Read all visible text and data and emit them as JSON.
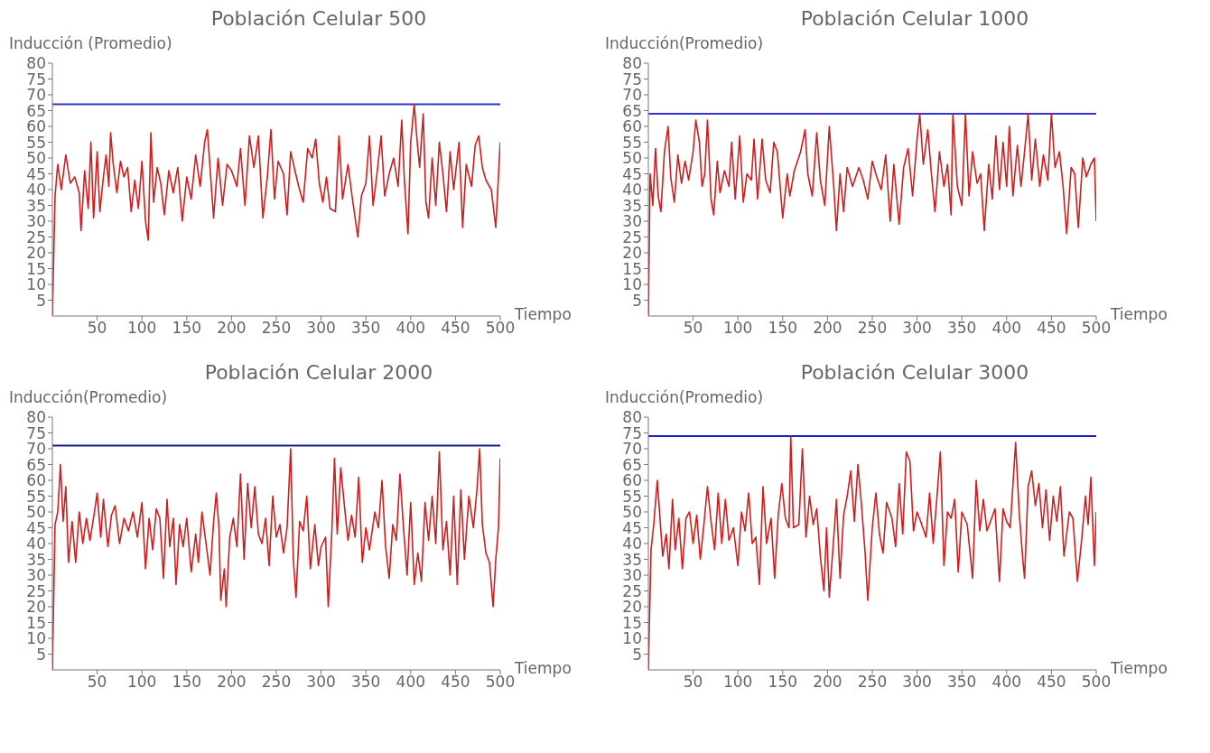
{
  "chart_data": [
    {
      "type": "line",
      "title": "Población Celular 500",
      "ylabel": "Inducción (Promedio)",
      "xlabel": "Tiempo",
      "xlim": [
        0,
        500
      ],
      "ylim": [
        0,
        80
      ],
      "xticks": [
        50,
        100,
        150,
        200,
        250,
        300,
        350,
        400,
        450,
        500
      ],
      "yticks": [
        5,
        10,
        15,
        20,
        25,
        30,
        35,
        40,
        45,
        50,
        55,
        60,
        65,
        70,
        75,
        80
      ],
      "ref_lines": [
        {
          "axis": "y",
          "value": 67,
          "color": "#3434d4"
        }
      ],
      "x": [
        0,
        3,
        6,
        10,
        15,
        20,
        25,
        30,
        32,
        36,
        40,
        43,
        46,
        50,
        53,
        57,
        60,
        63,
        65,
        68,
        72,
        76,
        80,
        84,
        88,
        92,
        96,
        100,
        104,
        107,
        110,
        113,
        117,
        121,
        125,
        130,
        135,
        140,
        145,
        150,
        155,
        160,
        165,
        170,
        173,
        176,
        180,
        185,
        190,
        195,
        200,
        206,
        210,
        215,
        220,
        225,
        230,
        235,
        240,
        244,
        248,
        252,
        258,
        262,
        266,
        270,
        275,
        280,
        285,
        290,
        294,
        298,
        302,
        306,
        310,
        316,
        320,
        324,
        330,
        335,
        341,
        345,
        350,
        354,
        358,
        362,
        367,
        371,
        376,
        381,
        386,
        390,
        393,
        397,
        400,
        404,
        407,
        410,
        414,
        417,
        420,
        424,
        428,
        432,
        436,
        440,
        444,
        448,
        454,
        458,
        462,
        468,
        472,
        476,
        480,
        484,
        490,
        495,
        500
      ],
      "series": [
        {
          "color": "#cc1f1f",
          "values": [
            0,
            38,
            48,
            40,
            51,
            42,
            44,
            39,
            27,
            46,
            34,
            55,
            31,
            52,
            33,
            44,
            51,
            41,
            58,
            48,
            39,
            49,
            44,
            47,
            33,
            43,
            34,
            49,
            30,
            24,
            58,
            36,
            47,
            42,
            32,
            46,
            39,
            47,
            30,
            44,
            37,
            51,
            41,
            55,
            59,
            47,
            31,
            50,
            35,
            48,
            46,
            41,
            53,
            35,
            57,
            47,
            57,
            31,
            44,
            59,
            37,
            49,
            45,
            32,
            52,
            47,
            41,
            36,
            53,
            50,
            56,
            42,
            36,
            44,
            34,
            33,
            57,
            37,
            48,
            37,
            25,
            38,
            42,
            57,
            35,
            44,
            57,
            38,
            45,
            50,
            41,
            62,
            43,
            26,
            55,
            67,
            56,
            47,
            64,
            36,
            31,
            50,
            35,
            55,
            45,
            33,
            52,
            40,
            55,
            28,
            48,
            41,
            54,
            57,
            47,
            43,
            40,
            28,
            55
          ]
        }
      ]
    },
    {
      "type": "line",
      "title": "Población Celular 1000",
      "ylabel": "Inducción(Promedio)",
      "xlabel": "Tiempo",
      "xlim": [
        0,
        500
      ],
      "ylim": [
        0,
        80
      ],
      "xticks": [
        50,
        100,
        150,
        200,
        250,
        300,
        350,
        400,
        450,
        500
      ],
      "yticks": [
        5,
        10,
        15,
        20,
        25,
        30,
        35,
        40,
        45,
        50,
        55,
        60,
        65,
        70,
        75,
        80
      ],
      "ref_lines": [
        {
          "axis": "y",
          "value": 64,
          "color": "#3434d4"
        }
      ],
      "x": [
        0,
        2,
        5,
        8,
        11,
        14,
        18,
        22,
        25,
        29,
        33,
        37,
        41,
        45,
        50,
        53,
        57,
        60,
        63,
        66,
        70,
        73,
        77,
        80,
        85,
        90,
        93,
        97,
        102,
        106,
        110,
        115,
        118,
        122,
        127,
        131,
        136,
        140,
        144,
        150,
        155,
        158,
        163,
        170,
        175,
        178,
        183,
        188,
        192,
        197,
        202,
        207,
        210,
        214,
        218,
        222,
        228,
        235,
        240,
        245,
        250,
        255,
        260,
        265,
        270,
        274,
        280,
        285,
        290,
        295,
        300,
        303,
        307,
        312,
        316,
        320,
        325,
        330,
        334,
        338,
        340,
        345,
        350,
        354,
        358,
        362,
        367,
        371,
        375,
        380,
        384,
        388,
        392,
        396,
        400,
        403,
        407,
        412,
        416,
        420,
        424,
        428,
        432,
        437,
        441,
        446,
        450,
        454,
        459,
        463,
        467,
        472,
        476,
        480,
        485,
        489,
        494,
        498,
        500
      ],
      "series": [
        {
          "color": "#cc1f1f",
          "values": [
            0,
            45,
            35,
            53,
            38,
            33,
            52,
            60,
            44,
            36,
            51,
            42,
            49,
            43,
            52,
            62,
            55,
            41,
            45,
            62,
            37,
            32,
            49,
            39,
            46,
            41,
            55,
            37,
            57,
            36,
            45,
            43,
            56,
            37,
            56,
            43,
            39,
            55,
            52,
            31,
            45,
            38,
            46,
            52,
            59,
            45,
            38,
            58,
            43,
            35,
            60,
            41,
            27,
            45,
            33,
            47,
            41,
            47,
            43,
            37,
            49,
            44,
            40,
            51,
            30,
            48,
            29,
            47,
            53,
            38,
            56,
            64,
            48,
            59,
            45,
            33,
            52,
            41,
            48,
            32,
            64,
            41,
            35,
            64,
            38,
            52,
            42,
            45,
            27,
            48,
            37,
            57,
            40,
            55,
            41,
            60,
            38,
            54,
            41,
            52,
            64,
            43,
            56,
            41,
            51,
            43,
            64,
            47,
            52,
            41,
            26,
            47,
            45,
            28,
            50,
            44,
            48,
            50,
            30
          ]
        }
      ]
    },
    {
      "type": "line",
      "title": "Población Celular 2000",
      "ylabel": "Inducción(Promedio)",
      "xlabel": "Tiempo",
      "xlim": [
        0,
        500
      ],
      "ylim": [
        0,
        80
      ],
      "xticks": [
        50,
        100,
        150,
        200,
        250,
        300,
        350,
        400,
        450,
        500
      ],
      "yticks": [
        5,
        10,
        15,
        20,
        25,
        30,
        35,
        40,
        45,
        50,
        55,
        60,
        65,
        70,
        75,
        80
      ],
      "ref_lines": [
        {
          "axis": "y",
          "value": 71,
          "color": "#1c1c8c"
        }
      ],
      "x": [
        0,
        3,
        6,
        9,
        12,
        15,
        18,
        22,
        26,
        30,
        34,
        38,
        42,
        47,
        50,
        54,
        57,
        62,
        66,
        70,
        75,
        80,
        85,
        90,
        95,
        100,
        104,
        108,
        112,
        116,
        120,
        124,
        128,
        131,
        135,
        138,
        142,
        146,
        150,
        155,
        160,
        163,
        167,
        172,
        176,
        180,
        183,
        186,
        188,
        192,
        194,
        198,
        202,
        206,
        210,
        214,
        218,
        222,
        226,
        230,
        234,
        238,
        242,
        246,
        250,
        254,
        258,
        262,
        266,
        269,
        272,
        276,
        280,
        284,
        288,
        293,
        297,
        300,
        305,
        308,
        312,
        315,
        318,
        322,
        326,
        330,
        334,
        338,
        342,
        346,
        350,
        354,
        360,
        364,
        368,
        372,
        376,
        380,
        384,
        388,
        392,
        396,
        400,
        404,
        408,
        412,
        416,
        420,
        424,
        428,
        432,
        436,
        440,
        444,
        448,
        452,
        456,
        460,
        465,
        470,
        474,
        477,
        480,
        484,
        488,
        492,
        495,
        498,
        500
      ],
      "series": [
        {
          "color": "#cc1f1f",
          "values": [
            0,
            46,
            50,
            65,
            47,
            58,
            34,
            47,
            34,
            50,
            40,
            48,
            41,
            50,
            56,
            42,
            54,
            39,
            49,
            52,
            40,
            48,
            44,
            50,
            42,
            53,
            32,
            48,
            38,
            51,
            48,
            29,
            54,
            39,
            48,
            27,
            46,
            39,
            48,
            31,
            43,
            34,
            50,
            39,
            30,
            47,
            56,
            45,
            22,
            32,
            20,
            42,
            48,
            39,
            62,
            35,
            59,
            45,
            58,
            43,
            40,
            48,
            33,
            55,
            42,
            46,
            37,
            45,
            70,
            35,
            23,
            47,
            44,
            55,
            32,
            46,
            33,
            39,
            42,
            20,
            44,
            67,
            43,
            64,
            52,
            41,
            49,
            42,
            61,
            34,
            45,
            38,
            50,
            45,
            60,
            39,
            29,
            46,
            41,
            62,
            45,
            30,
            53,
            27,
            37,
            28,
            53,
            41,
            55,
            40,
            69,
            38,
            47,
            30,
            55,
            27,
            57,
            35,
            55,
            45,
            57,
            70,
            46,
            37,
            34,
            20,
            35,
            45,
            67
          ]
        }
      ]
    },
    {
      "type": "line",
      "title": "Población Celular 3000",
      "ylabel": "Inducción(Promedio)",
      "xlabel": "Tiempo",
      "xlim": [
        0,
        500
      ],
      "ylim": [
        0,
        80
      ],
      "xticks": [
        50,
        100,
        150,
        200,
        250,
        300,
        350,
        400,
        450,
        500
      ],
      "yticks": [
        5,
        10,
        15,
        20,
        25,
        30,
        35,
        40,
        45,
        50,
        55,
        60,
        65,
        70,
        75,
        80
      ],
      "ref_lines": [
        {
          "axis": "y",
          "value": 74,
          "color": "#1a1ad0"
        }
      ],
      "x": [
        0,
        3,
        6,
        10,
        13,
        16,
        20,
        23,
        27,
        30,
        34,
        38,
        42,
        46,
        50,
        54,
        58,
        62,
        66,
        70,
        74,
        78,
        82,
        86,
        90,
        95,
        100,
        104,
        108,
        112,
        116,
        120,
        124,
        128,
        132,
        137,
        141,
        145,
        149,
        153,
        157,
        159,
        162,
        168,
        172,
        176,
        180,
        184,
        188,
        192,
        196,
        199,
        202,
        206,
        210,
        214,
        218,
        222,
        226,
        230,
        234,
        238,
        242,
        245,
        250,
        254,
        258,
        262,
        266,
        272,
        276,
        280,
        284,
        288,
        292,
        296,
        300,
        304,
        310,
        314,
        318,
        322,
        326,
        330,
        334,
        338,
        342,
        346,
        350,
        356,
        362,
        366,
        370,
        374,
        378,
        382,
        387,
        392,
        396,
        400,
        404,
        410,
        414,
        418,
        420,
        424,
        428,
        432,
        436,
        440,
        444,
        448,
        452,
        456,
        460,
        464,
        470,
        474,
        479,
        484,
        488,
        491,
        494,
        498,
        500
      ],
      "series": [
        {
          "color": "#cc1f1f",
          "values": [
            0,
            38,
            46,
            60,
            48,
            36,
            43,
            32,
            54,
            38,
            48,
            32,
            48,
            50,
            40,
            49,
            35,
            46,
            58,
            47,
            38,
            56,
            40,
            54,
            41,
            45,
            33,
            50,
            44,
            56,
            40,
            42,
            27,
            58,
            40,
            48,
            29,
            49,
            59,
            48,
            45,
            74,
            45,
            46,
            70,
            42,
            55,
            46,
            51,
            36,
            25,
            45,
            23,
            38,
            54,
            29,
            49,
            55,
            63,
            47,
            65,
            52,
            37,
            22,
            45,
            56,
            43,
            37,
            53,
            48,
            39,
            59,
            43,
            69,
            66,
            44,
            50,
            47,
            42,
            56,
            40,
            54,
            69,
            33,
            50,
            48,
            54,
            31,
            50,
            46,
            29,
            60,
            44,
            54,
            44,
            47,
            51,
            28,
            51,
            47,
            45,
            72,
            50,
            35,
            29,
            58,
            63,
            52,
            59,
            45,
            57,
            41,
            55,
            47,
            58,
            36,
            50,
            48,
            28,
            42,
            55,
            46,
            61,
            33,
            50
          ]
        }
      ]
    }
  ]
}
